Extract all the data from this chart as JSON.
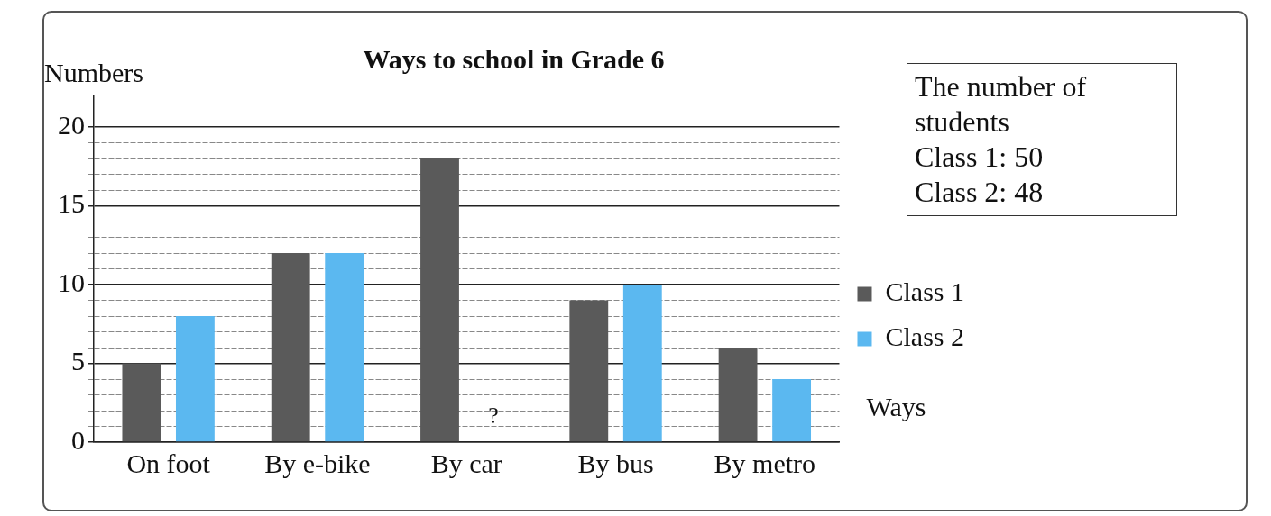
{
  "chart_data": {
    "type": "bar",
    "title": "Ways to school in Grade 6",
    "xlabel": "Ways",
    "ylabel": "Numbers",
    "categories": [
      "On foot",
      "By e-bike",
      "By car",
      "By bus",
      "By metro"
    ],
    "series": [
      {
        "name": "Class 1",
        "color": "#5a5a5a",
        "values": [
          5,
          12,
          18,
          9,
          6
        ]
      },
      {
        "name": "Class 2",
        "color": "#5bb8f0",
        "values": [
          8,
          12,
          null,
          10,
          4
        ]
      }
    ],
    "ylim": [
      0,
      22
    ],
    "yticks": [
      0,
      {
        "value": 1,
        "label": null
      },
      {
        "value": 2,
        "label": null
      },
      {
        "value": 3,
        "label": null
      },
      {
        "value": 4,
        "label": null
      },
      5,
      {
        "value": 6,
        "label": null
      },
      {
        "value": 7,
        "label": null
      },
      {
        "value": 8,
        "label": null
      },
      {
        "value": 9,
        "label": null
      },
      10,
      {
        "value": 11,
        "label": null
      },
      {
        "value": 12,
        "label": null
      },
      {
        "value": 13,
        "label": null
      },
      {
        "value": 14,
        "label": null
      },
      15,
      {
        "value": 16,
        "label": null
      },
      {
        "value": 17,
        "label": null
      },
      {
        "value": 18,
        "label": null
      },
      {
        "value": 19,
        "label": null
      },
      20
    ],
    "grid": "y",
    "legend": "right",
    "annotations": [
      "The number of students",
      "Class 1: 50",
      "Class 2: 48",
      "?"
    ]
  }
}
